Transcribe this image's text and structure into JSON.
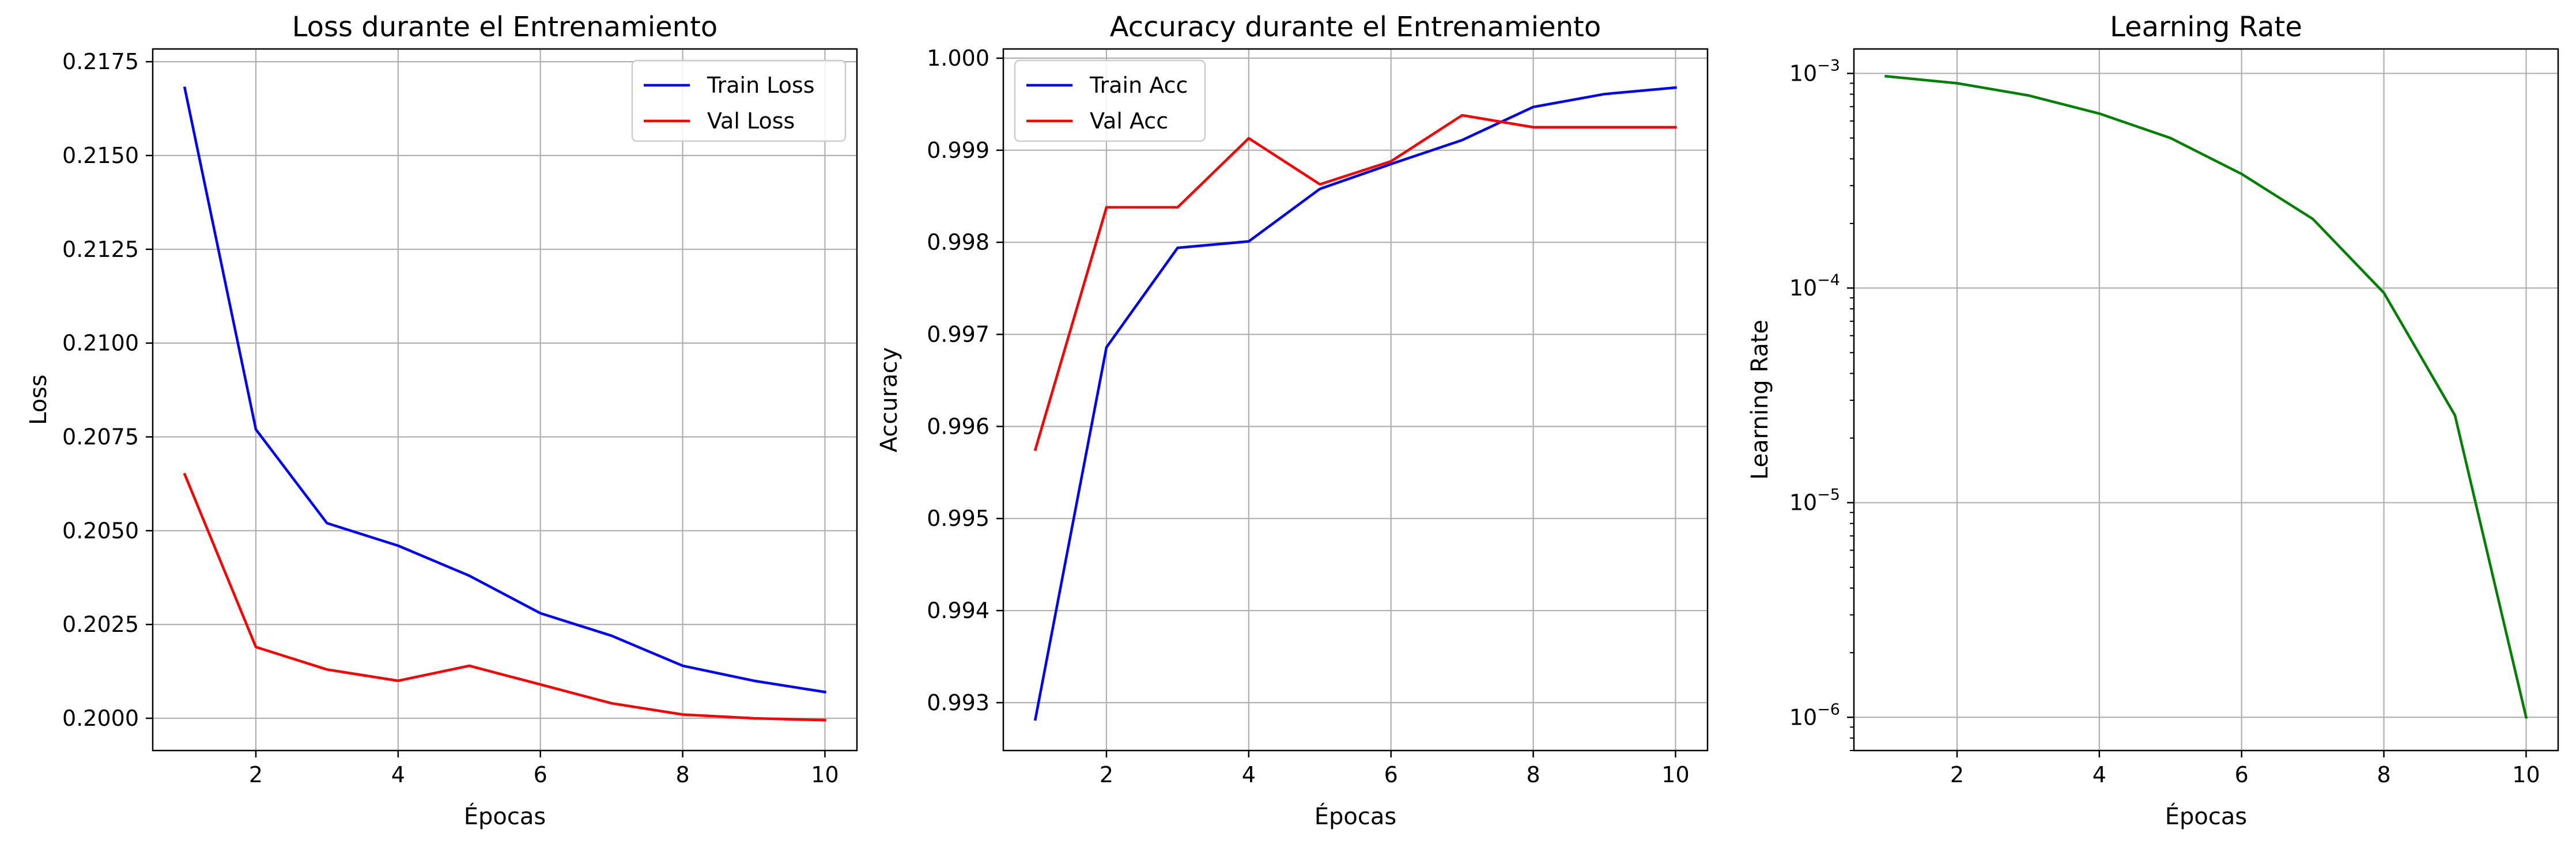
{
  "chart_data": [
    {
      "type": "line",
      "title": "Loss durante el Entrenamiento",
      "xlabel": "Épocas",
      "ylabel": "Loss",
      "xlim": [
        0.55,
        10.45
      ],
      "ylim": [
        0.19914,
        0.21784
      ],
      "x_ticks": [
        2,
        4,
        6,
        8,
        10
      ],
      "x_tick_labels": [
        "2",
        "4",
        "6",
        "8",
        "10"
      ],
      "y_ticks": [
        0.2,
        0.2025,
        0.205,
        0.2075,
        0.21,
        0.2125,
        0.215,
        0.2175
      ],
      "y_tick_labels": [
        "0.2000",
        "0.2025",
        "0.2050",
        "0.2075",
        "0.2100",
        "0.2125",
        "0.2150",
        "0.2175"
      ],
      "grid": true,
      "legend": "top-right",
      "x": [
        1,
        2,
        3,
        4,
        5,
        6,
        7,
        8,
        9,
        10
      ],
      "series": [
        {
          "name": "Train Loss",
          "color": "#0000ff",
          "values": [
            0.2168,
            0.2077,
            0.2052,
            0.2046,
            0.2038,
            0.2028,
            0.2022,
            0.2014,
            0.201,
            0.2007
          ]
        },
        {
          "name": "Val Loss",
          "color": "#ff0000",
          "values": [
            0.2065,
            0.2019,
            0.2013,
            0.201,
            0.2014,
            0.2009,
            0.2004,
            0.2001,
            0.2,
            0.19995
          ]
        }
      ]
    },
    {
      "type": "line",
      "title": "Accuracy durante el Entrenamiento",
      "xlabel": "Épocas",
      "ylabel": "Accuracy",
      "xlim": [
        0.55,
        10.45
      ],
      "ylim": [
        0.99248,
        1.0001
      ],
      "x_ticks": [
        2,
        4,
        6,
        8,
        10
      ],
      "x_tick_labels": [
        "2",
        "4",
        "6",
        "8",
        "10"
      ],
      "y_ticks": [
        0.993,
        0.994,
        0.995,
        0.996,
        0.997,
        0.998,
        0.999,
        1.0
      ],
      "y_tick_labels": [
        "0.993",
        "0.994",
        "0.995",
        "0.996",
        "0.997",
        "0.998",
        "0.999",
        "1.000"
      ],
      "grid": true,
      "legend": "top-left",
      "x": [
        1,
        2,
        3,
        4,
        5,
        6,
        7,
        8,
        9,
        10
      ],
      "series": [
        {
          "name": "Train Acc",
          "color": "#0000ff",
          "values": [
            0.99282,
            0.99686,
            0.99794,
            0.99801,
            0.99858,
            0.99885,
            0.99911,
            0.99947,
            0.99961,
            0.99968
          ]
        },
        {
          "name": "Val Acc",
          "color": "#ff0000",
          "values": [
            0.99575,
            0.99838,
            0.99838,
            0.99913,
            0.99863,
            0.99888,
            0.99938,
            0.99925,
            0.99925,
            0.99925
          ]
        }
      ]
    },
    {
      "type": "line",
      "title": "Learning Rate",
      "xlabel": "Épocas",
      "ylabel": "Learning Rate",
      "yscale": "log",
      "xlim": [
        0.55,
        10.45
      ],
      "ylim": [
        7e-07,
        0.0013
      ],
      "x_ticks": [
        2,
        4,
        6,
        8,
        10
      ],
      "x_tick_labels": [
        "2",
        "4",
        "6",
        "8",
        "10"
      ],
      "y_ticks": [
        1e-06,
        1e-05,
        0.0001,
        0.001
      ],
      "y_tick_labels": [
        {
          "base": "10",
          "exp": "−6"
        },
        {
          "base": "10",
          "exp": "−5"
        },
        {
          "base": "10",
          "exp": "−4"
        },
        {
          "base": "10",
          "exp": "−3"
        }
      ],
      "grid": true,
      "x": [
        1,
        2,
        3,
        4,
        5,
        6,
        7,
        8,
        9,
        10
      ],
      "series": [
        {
          "color": "#008000",
          "values": [
            0.00097,
            0.0009,
            0.00079,
            0.00065,
            0.0005,
            0.00034,
            0.00021,
            9.5e-05,
            2.55e-05,
            1e-06
          ]
        }
      ]
    }
  ]
}
